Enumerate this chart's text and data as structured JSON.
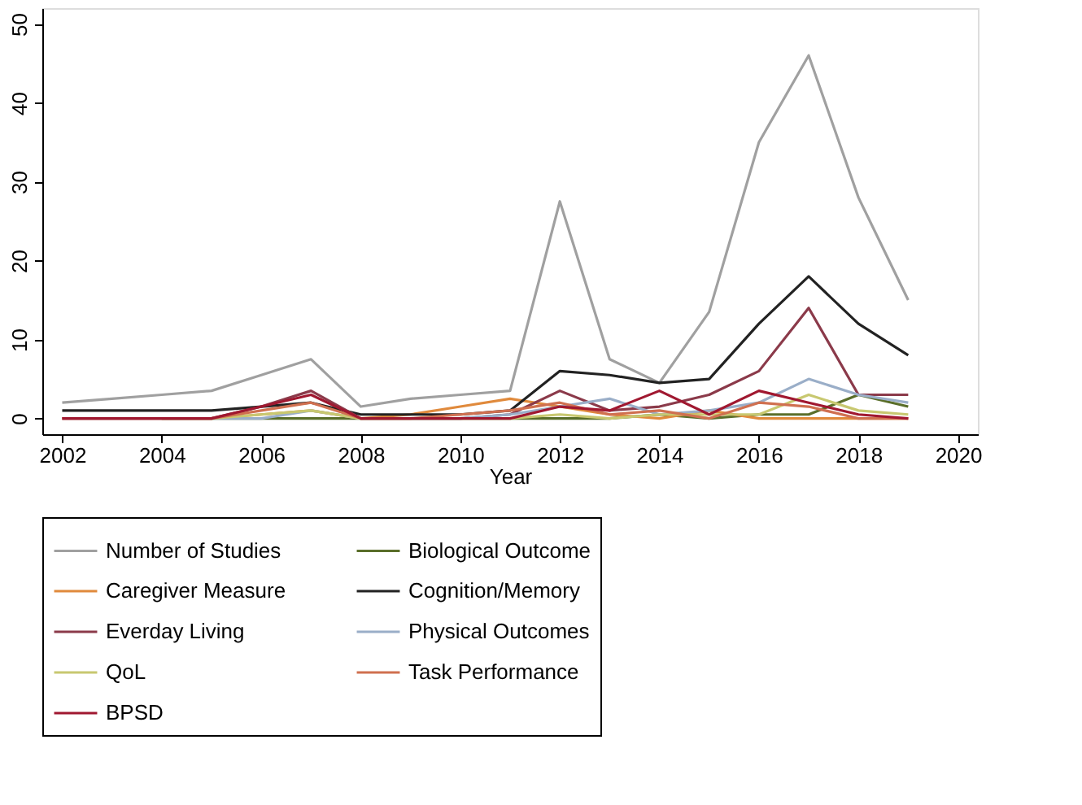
{
  "chart_data": {
    "type": "line",
    "xlabel": "Year",
    "x": [
      2002,
      2003,
      2004,
      2005,
      2006,
      2007,
      2008,
      2009,
      2010,
      2011,
      2012,
      2013,
      2014,
      2015,
      2016,
      2017,
      2018,
      2019
    ],
    "series": [
      {
        "name": "Number of Studies",
        "color": "#a0a0a0",
        "values": [
          2,
          2.5,
          3,
          3.5,
          5.5,
          7.5,
          1.5,
          2.5,
          3,
          3.5,
          27.5,
          7.5,
          4.5,
          13.5,
          35,
          46,
          28,
          15
        ]
      },
      {
        "name": "Biological Outcome",
        "color": "#5a6e2a",
        "values": [
          null,
          null,
          0,
          0,
          0,
          0,
          0,
          0,
          0,
          0,
          0,
          0,
          0.5,
          0,
          0.5,
          0.5,
          3,
          1.5
        ]
      },
      {
        "name": "Caregiver Measure",
        "color": "#e08a3c",
        "values": [
          null,
          null,
          0,
          0,
          0.5,
          1,
          0,
          0.5,
          1.5,
          2.5,
          1.5,
          0.5,
          0,
          1,
          0,
          0,
          0,
          0
        ]
      },
      {
        "name": "Cognition/Memory",
        "color": "#222222",
        "values": [
          1,
          1,
          1,
          1,
          1.5,
          2,
          0.5,
          0.5,
          0.5,
          1,
          6,
          5.5,
          4.5,
          5,
          12,
          18,
          12,
          8
        ]
      },
      {
        "name": "Everday Living",
        "color": "#8b3a4a",
        "values": [
          0,
          0,
          0,
          0,
          1.5,
          3.5,
          0,
          0,
          0,
          0.5,
          3.5,
          1,
          1.5,
          3,
          6,
          14,
          3,
          3
        ]
      },
      {
        "name": "Physical Outcomes",
        "color": "#9aaec8",
        "values": [
          null,
          null,
          0,
          0,
          0,
          1,
          0,
          0,
          0,
          0.5,
          1.5,
          2.5,
          0.5,
          1,
          2,
          5,
          3,
          2
        ]
      },
      {
        "name": "QoL",
        "color": "#c8c870",
        "values": [
          null,
          null,
          0,
          0,
          0.5,
          1,
          0,
          0,
          0,
          0,
          0.5,
          0,
          0.5,
          0.5,
          0.5,
          3,
          1,
          0.5
        ]
      },
      {
        "name": "Task Performance",
        "color": "#d07050",
        "values": [
          0,
          0,
          0,
          0,
          1,
          2,
          0,
          0,
          0.5,
          1,
          2,
          0.5,
          1,
          0,
          2,
          1.5,
          0,
          0
        ]
      },
      {
        "name": "BPSD",
        "color": "#a01830",
        "values": [
          0,
          0,
          0,
          0,
          1.5,
          3,
          0,
          0,
          0,
          0,
          1.5,
          1,
          3.5,
          0.5,
          3.5,
          2,
          0.5,
          0
        ]
      }
    ],
    "xlim": [
      2001.6,
      2020.4
    ],
    "xticks": [
      2002,
      2004,
      2006,
      2008,
      2010,
      2012,
      2014,
      2016,
      2018,
      2020
    ],
    "ylim": [
      -2,
      52
    ],
    "yticks": [
      0,
      10,
      20,
      30,
      40,
      50
    ],
    "grid": false,
    "legend": "bottom"
  }
}
